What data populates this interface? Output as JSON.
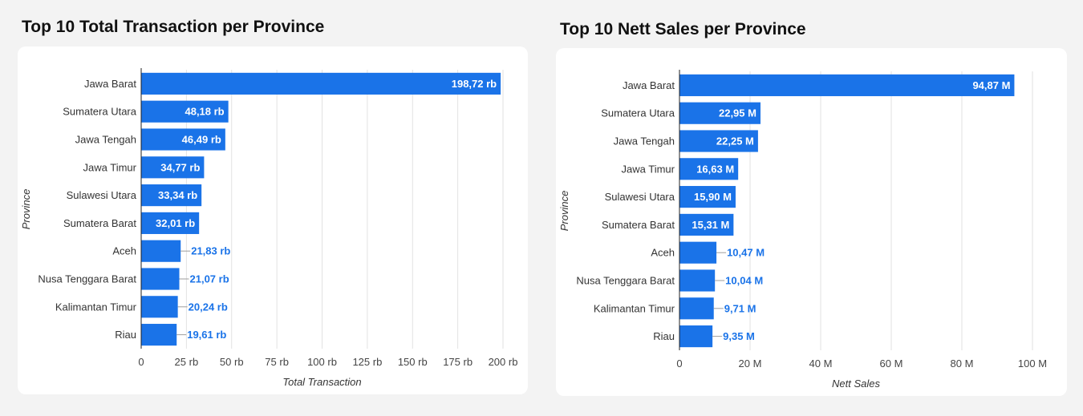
{
  "charts": [
    {
      "title": "Top 10 Total Transaction per Province",
      "chart_data": {
        "type": "bar",
        "orientation": "horizontal",
        "categories": [
          "Jawa Barat",
          "Sumatera Utara",
          "Jawa Tengah",
          "Jawa Timur",
          "Sulawesi Utara",
          "Sumatera Barat",
          "Aceh",
          "Nusa Tenggara Barat",
          "Kalimantan Timur",
          "Riau"
        ],
        "values": [
          198720,
          48180,
          46490,
          34770,
          33340,
          32010,
          21830,
          21070,
          20240,
          19610
        ],
        "value_labels": [
          "198,72 rb",
          "48,18 rb",
          "46,49 rb",
          "34,77 rb",
          "33,34 rb",
          "32,01 rb",
          "21,83 rb",
          "21,07 rb",
          "20,24 rb",
          "19,61 rb"
        ],
        "xlabel": "Total Transaction",
        "ylabel": "Province",
        "xlim": [
          0,
          200000
        ],
        "xticks": [
          0,
          25000,
          50000,
          75000,
          100000,
          125000,
          150000,
          175000,
          200000
        ],
        "xtick_labels": [
          "0",
          "25 rb",
          "50 rb",
          "75 rb",
          "100 rb",
          "125 rb",
          "150 rb",
          "175 rb",
          "200 rb"
        ],
        "grid": true,
        "bar_color": "#1a73e8"
      }
    },
    {
      "title": "Top 10 Nett Sales per Province",
      "chart_data": {
        "type": "bar",
        "orientation": "horizontal",
        "categories": [
          "Jawa Barat",
          "Sumatera Utara",
          "Jawa Tengah",
          "Jawa Timur",
          "Sulawesi Utara",
          "Sumatera Barat",
          "Aceh",
          "Nusa Tenggara Barat",
          "Kalimantan Timur",
          "Riau"
        ],
        "values": [
          94.87,
          22.95,
          22.25,
          16.63,
          15.9,
          15.31,
          10.47,
          10.04,
          9.71,
          9.35
        ],
        "value_labels": [
          "94,87 M",
          "22,95 M",
          "22,25 M",
          "16,63 M",
          "15,90 M",
          "15,31 M",
          "10,47 M",
          "10,04 M",
          "9,71 M",
          "9,35 M"
        ],
        "xlabel": "Nett Sales",
        "ylabel": "Province",
        "xlim": [
          0,
          100
        ],
        "xticks": [
          0,
          20,
          40,
          60,
          80,
          100
        ],
        "xtick_labels": [
          "0",
          "20 M",
          "40 M",
          "60 M",
          "80 M",
          "100 M"
        ],
        "grid": true,
        "bar_color": "#1a73e8"
      }
    }
  ]
}
